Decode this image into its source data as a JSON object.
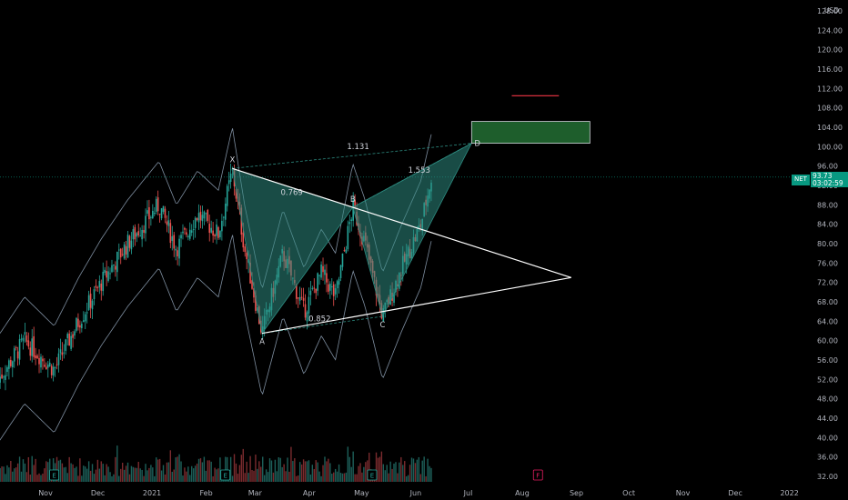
{
  "chart_data": {
    "type": "candlestick",
    "symbol": "NET",
    "currency": "USD",
    "last_price": "93.73",
    "countdown": "03:02:59",
    "x_tick_labels": [
      "Nov",
      "Dec",
      "2021",
      "Feb",
      "Mar",
      "Apr",
      "May",
      "Jun",
      "Jul",
      "Aug",
      "Sep",
      "Oct",
      "Nov",
      "Dec",
      "2022"
    ],
    "y_tick_labels": [
      "128.00",
      "124.00",
      "120.00",
      "116.00",
      "112.00",
      "108.00",
      "104.00",
      "100.00",
      "96.00",
      "92.00",
      "88.00",
      "84.00",
      "80.00",
      "76.00",
      "72.00",
      "68.00",
      "64.00",
      "60.00",
      "56.00",
      "52.00",
      "48.00",
      "44.00",
      "40.00",
      "36.00",
      "32.00"
    ],
    "ylim": [
      32,
      128
    ],
    "pattern": {
      "points": [
        {
          "label": "X",
          "date": "2021-02-16",
          "price": 95.5
        },
        {
          "label": "A",
          "date": "2021-03-05",
          "price": 61.5
        },
        {
          "label": "B",
          "date": "2021-04-26",
          "price": 87.5
        },
        {
          "label": "C",
          "date": "2021-05-13",
          "price": 65.0
        },
        {
          "label": "D",
          "date": "2021-07-03",
          "price": 100.7
        }
      ],
      "ratios": [
        {
          "text": "0.769",
          "between": "XA-AB"
        },
        {
          "text": "0.852",
          "between": "AB-BC"
        },
        {
          "text": "1.131",
          "between": "XA-AD"
        },
        {
          "text": "1.553",
          "between": "BC-CD"
        }
      ],
      "target_zone": {
        "price_low": 100.7,
        "price_high": 105.2
      },
      "stop_price": 110.5
    },
    "triangle": {
      "upper_start": {
        "date": "2021-02-16",
        "price": 95.5
      },
      "lower_start": {
        "date": "2021-03-05",
        "price": 61.5
      },
      "apex": {
        "date": "2021-08-29",
        "price": 73.0
      }
    },
    "event_markers": [
      "E",
      "E",
      "E",
      "F"
    ],
    "colors": {
      "up": "#26a69a",
      "down": "#ef5350",
      "pattern_fill": "#2d8b80",
      "target_zone": "#1e5e2c",
      "stop_line": "#f23645",
      "bands": "#7e8ea0",
      "price_tag": "#089981"
    }
  }
}
